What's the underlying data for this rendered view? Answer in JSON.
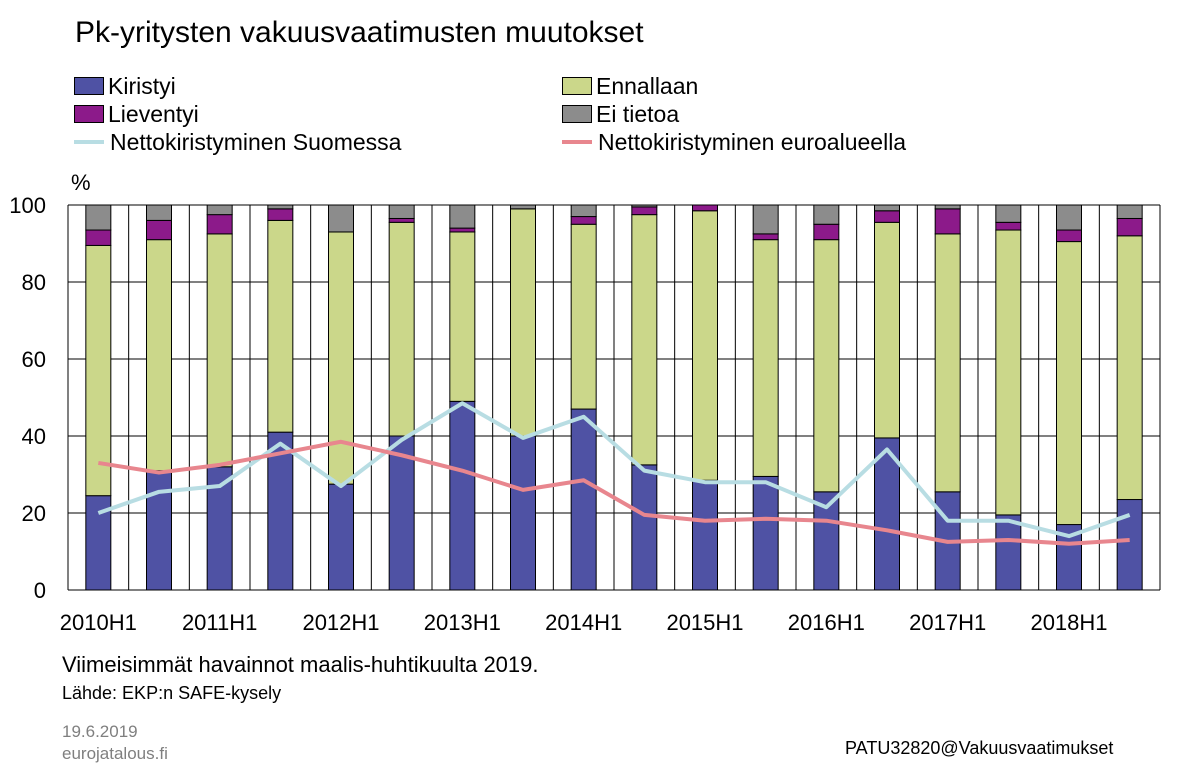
{
  "chart_data": {
    "type": "bar",
    "stacked": true,
    "title": "Pk-yritysten vakuusvaatimusten muutokset",
    "ylabel": "%",
    "ylim": [
      0,
      100
    ],
    "yticks": [
      0,
      20,
      40,
      60,
      80,
      100
    ],
    "grid": true,
    "legend_position": "top",
    "categories": [
      "2010H1",
      "2010H2",
      "2011H1",
      "2011H2",
      "2012H1",
      "2012H2",
      "2013H1",
      "2013H2",
      "2014H1",
      "2014H2",
      "2015H1",
      "2015H2",
      "2016H1",
      "2016H2",
      "2017H1",
      "2017H2",
      "2018H1",
      "2018H2"
    ],
    "tick_labels": [
      "2010H1",
      "",
      "2011H1",
      "",
      "2012H1",
      "",
      "2013H1",
      "",
      "2014H1",
      "",
      "2015H1",
      "",
      "2016H1",
      "",
      "2017H1",
      "",
      "2018H1",
      ""
    ],
    "series": [
      {
        "name": "Kiristyi",
        "kind": "bar",
        "color": "#4f52a4",
        "values": [
          24.5,
          31,
          32,
          41,
          27.5,
          40,
          49,
          40,
          47,
          32.5,
          28.5,
          29.5,
          25.5,
          39.5,
          25.5,
          19.5,
          17,
          23.5
        ]
      },
      {
        "name": "Ennallaan",
        "kind": "bar",
        "color": "#cbd78a",
        "values": [
          65,
          60,
          60.5,
          55,
          65.5,
          55.5,
          44,
          59,
          48,
          65,
          70,
          61.5,
          65.5,
          56,
          67,
          74,
          73.5,
          68.5
        ]
      },
      {
        "name": "Lieventyi",
        "kind": "bar",
        "color": "#8c1a8a",
        "values": [
          4,
          5,
          5,
          3,
          0,
          1,
          1,
          0,
          2,
          2,
          1.5,
          1.5,
          4,
          3,
          6.5,
          2,
          3,
          4.5
        ]
      },
      {
        "name": "Ei tietoa",
        "kind": "bar",
        "color": "#8c8c8c",
        "values": [
          6.5,
          4,
          2.5,
          1,
          7,
          3.5,
          6,
          1,
          3,
          0.5,
          0,
          7.5,
          5,
          1.5,
          1,
          4.5,
          6.5,
          3.5
        ]
      },
      {
        "name": "Nettokiristyminen Suomessa",
        "kind": "line",
        "color": "#b8dde3",
        "values": [
          20,
          25.5,
          27,
          38,
          27,
          39,
          48.5,
          39.5,
          45,
          31,
          28,
          28,
          21.5,
          36.5,
          18,
          18,
          14,
          19.5
        ]
      },
      {
        "name": "Nettokiristyminen euroalueella",
        "kind": "line",
        "color": "#e8868e",
        "values": [
          33,
          30.5,
          32.5,
          35.5,
          38.5,
          35,
          31,
          26,
          28.5,
          19.5,
          18,
          18.5,
          18,
          15.5,
          12.5,
          13,
          12,
          13
        ]
      }
    ]
  },
  "notes": {
    "line1": "Viimeisimmät havainnot maalis-huhtikuulta 2019.",
    "line2": "Lähde: EKP:n SAFE-kysely"
  },
  "footer": {
    "date": "19.6.2019",
    "site": "eurojatalous.fi",
    "code": "PATU32820@Vakuusvaatimukset"
  }
}
